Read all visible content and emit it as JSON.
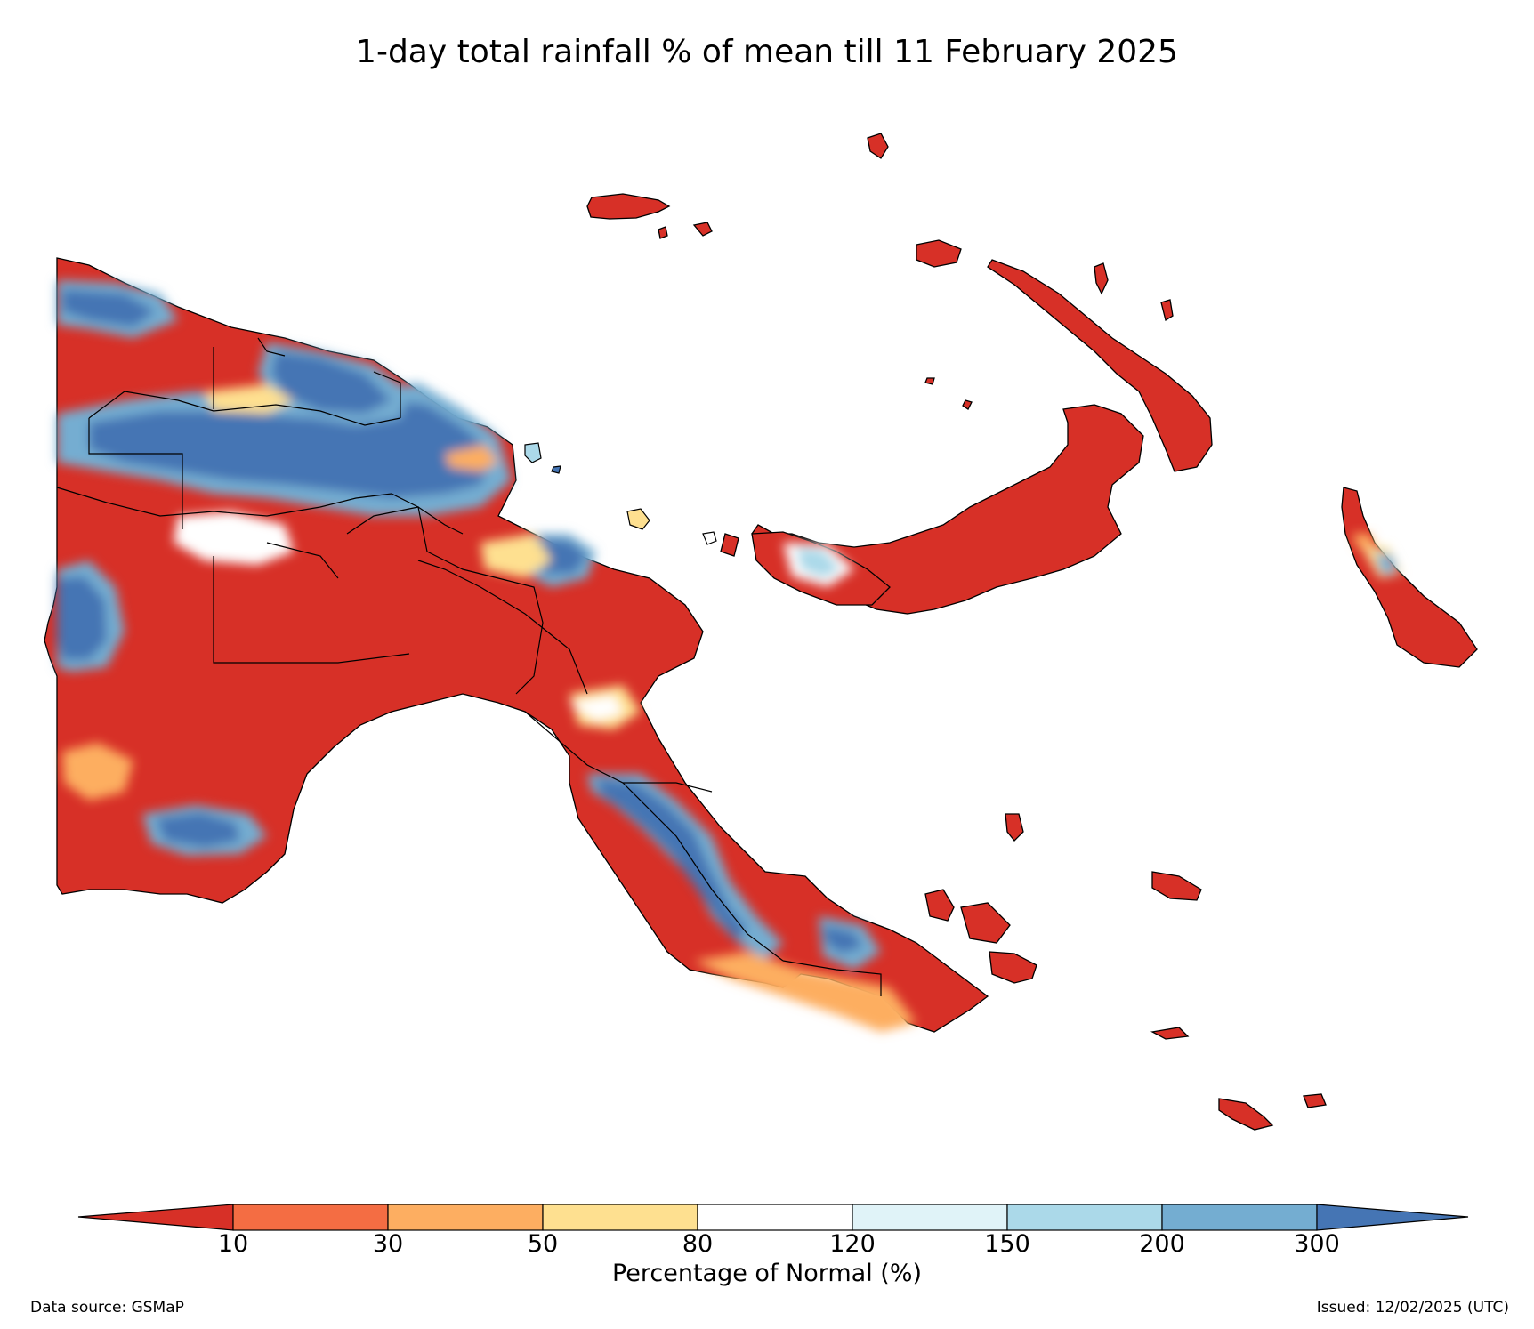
{
  "title": "1-day total rainfall % of mean till 11 February 2025",
  "colorbar": {
    "label": "Percentage of Normal (%)",
    "ticks": [
      "10",
      "30",
      "50",
      "80",
      "120",
      "150",
      "200",
      "300"
    ],
    "colors": [
      "#d73027",
      "#f46d43",
      "#fdae61",
      "#fee090",
      "#ffffff",
      "#e0f3f8",
      "#abd9e9",
      "#74add1",
      "#4575b4"
    ]
  },
  "footer": {
    "source": "Data source: GSMaP",
    "issued": "Issued: 12/02/2025 (UTC)"
  }
}
